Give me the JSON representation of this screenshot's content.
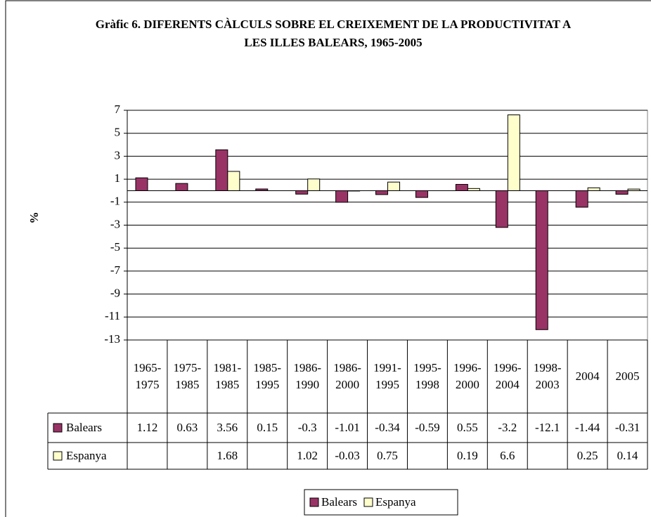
{
  "chart_data": {
    "type": "bar",
    "title": "Gràfic 6. DIFERENTS CÀLCULS SOBRE EL CREIXEMENT DE LA PRODUCTIVITAT A LES ILLES BALEARS, 1965-2005",
    "y_label": "%",
    "categories": [
      "1965-1975",
      "1975-1985",
      "1981-1985",
      "1985-1995",
      "1986-1990",
      "1986-2000",
      "1991-1995",
      "1995-1998",
      "1996-2000",
      "1996-2004",
      "1998-2003",
      "2004",
      "2005"
    ],
    "series": [
      {
        "name": "Balears",
        "color": "#993366",
        "values": [
          1.12,
          0.63,
          3.56,
          0.15,
          -0.3,
          -1.01,
          -0.34,
          -0.59,
          0.55,
          -3.2,
          -12.1,
          -1.44,
          -0.31
        ]
      },
      {
        "name": "Espanya",
        "color": "#ffffcc",
        "values": [
          null,
          null,
          1.68,
          null,
          1.02,
          -0.03,
          0.75,
          null,
          0.19,
          6.6,
          null,
          0.25,
          0.14
        ]
      }
    ],
    "ylim": [
      -13,
      7
    ],
    "yticks": [
      7,
      5,
      3,
      1,
      -1,
      -3,
      -5,
      -7,
      -9,
      -11,
      -13
    ],
    "grid": true,
    "legend": "bottom"
  }
}
